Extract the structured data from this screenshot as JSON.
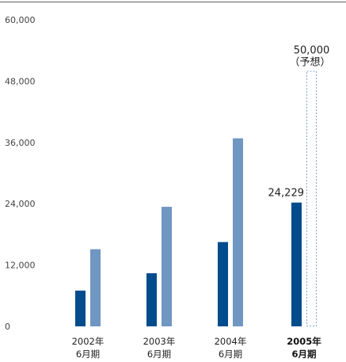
{
  "chart_data": {
    "type": "bar",
    "yticks": [
      "60,000",
      "48,000",
      "36,000",
      "24,000",
      "12,000",
      "0"
    ],
    "ylim": [
      0,
      60000
    ],
    "grid": false,
    "categories": [
      {
        "line1": "2002年",
        "line2": "6月期",
        "bold": false
      },
      {
        "line1": "2003年",
        "line2": "6月期",
        "bold": false
      },
      {
        "line1": "2004年",
        "line2": "6月期",
        "bold": false
      },
      {
        "line1": "2005年",
        "line2": "6月期",
        "bold": true
      }
    ],
    "series": [
      {
        "values": [
          7000,
          10400,
          16500,
          24229
        ],
        "color": "#004c8c"
      },
      {
        "values": [
          15100,
          23400,
          36800,
          50000
        ],
        "color": "#7096c2"
      }
    ],
    "forecast": {
      "index": 3,
      "series": 1,
      "style": "dashed-outline",
      "color": "#7fa6d0"
    },
    "annotations": {
      "actual_label": "24,229",
      "forecast_value": "50,000",
      "forecast_note": "（予想）"
    }
  }
}
